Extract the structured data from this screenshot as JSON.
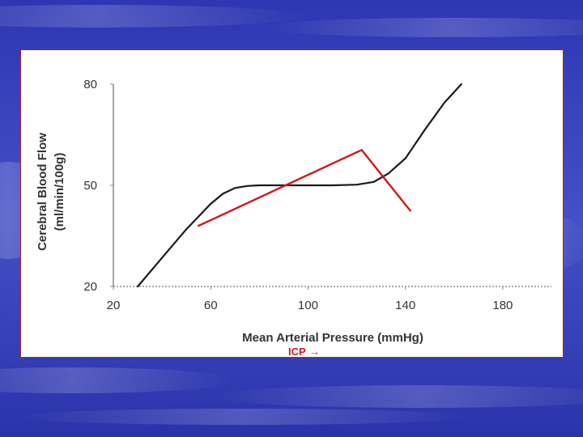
{
  "slide": {
    "background_color": "#3a43b8",
    "panel_border_color": "#b02030"
  },
  "chart_data": {
    "type": "line",
    "title": "",
    "xlabel": "Mean Arterial Pressure (mmHg)",
    "ylabel_line1": "Cerebral Blood Flow",
    "ylabel_line2": "(ml/min/100g)",
    "xlim": [
      20,
      200
    ],
    "ylim": [
      20,
      80
    ],
    "x_ticks": [
      20,
      60,
      100,
      140,
      180
    ],
    "y_ticks": [
      20,
      50,
      80
    ],
    "x_tick_labels": [
      "20",
      "60",
      "100",
      "140",
      "180"
    ],
    "y_tick_labels": [
      "20",
      "50",
      "80"
    ],
    "grid": false,
    "series": [
      {
        "name": "Cerebral Blood Flow",
        "color": "#1a1a1a",
        "x": [
          30,
          40,
          50,
          60,
          65,
          70,
          75,
          80,
          90,
          100,
          110,
          120,
          127,
          133,
          140,
          148,
          156,
          163
        ],
        "y": [
          20,
          28.5,
          37,
          44.5,
          47.5,
          49.2,
          49.8,
          50,
          50,
          50,
          50,
          50.2,
          51,
          53.5,
          58,
          66.5,
          74.5,
          80
        ]
      },
      {
        "name": "ICP annotation",
        "color": "#d01818",
        "x": [
          55,
          122,
          142
        ],
        "y": [
          38,
          60.5,
          42.5
        ]
      }
    ],
    "annotations": [
      {
        "text": "ICP",
        "arrow": "→",
        "color": "#d01818",
        "at_x": 106
      }
    ]
  }
}
